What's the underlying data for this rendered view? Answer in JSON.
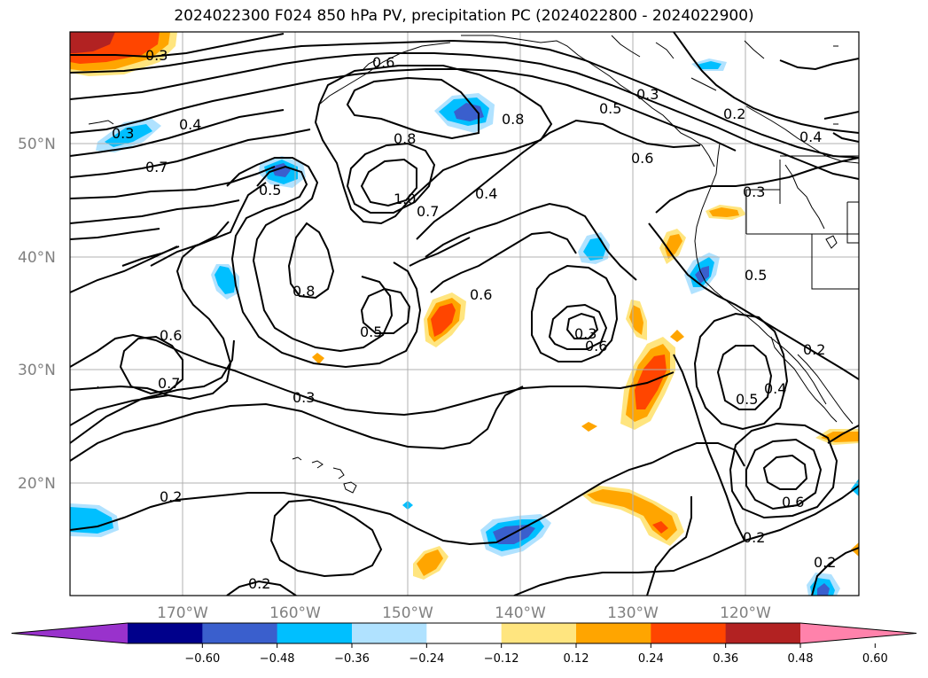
{
  "title": "2024022300 F024 850 hPa PV, precipitation PC (2024022800 - 2024022900)",
  "map": {
    "projection": "PlateCarree",
    "lon_range": [
      -180,
      -110
    ],
    "lat_range": [
      10,
      60
    ],
    "lat_labels": [
      "50°N",
      "40°N",
      "30°N",
      "20°N"
    ],
    "lon_labels": [
      "170°W",
      "160°W",
      "150°W",
      "140°W",
      "130°W",
      "120°W"
    ],
    "gridlines": true
  },
  "contour_labels": [
    "0.3",
    "0.6",
    "0.3",
    "0.5",
    "0.8",
    "0.2",
    "0.4",
    "0.3",
    "0.4",
    "0.7",
    "0.8",
    "0.5",
    "0.6",
    "1.0",
    "0.7",
    "0.4",
    "0.3",
    "0.8",
    "0.6",
    "0.5",
    "0.5",
    "0.6",
    "0.3",
    "0.6",
    "0.7",
    "0.3",
    "0.5",
    "0.4",
    "0.2",
    "0.6",
    "0.2",
    "0.2",
    "0.2",
    "0.2"
  ],
  "colorbar": {
    "ticks": [
      "−0.60",
      "−0.48",
      "−0.36",
      "−0.24",
      "−0.12",
      "0.12",
      "0.24",
      "0.36",
      "0.48",
      "0.60"
    ],
    "extend": "both",
    "colors": [
      "#9932cc",
      "#00008b",
      "#3a5fcd",
      "#00bfff",
      "#b0e2ff",
      "#ffffff",
      "#ffe57f",
      "#ffa500",
      "#ff4500",
      "#b22222",
      "#ff82ab"
    ]
  }
}
